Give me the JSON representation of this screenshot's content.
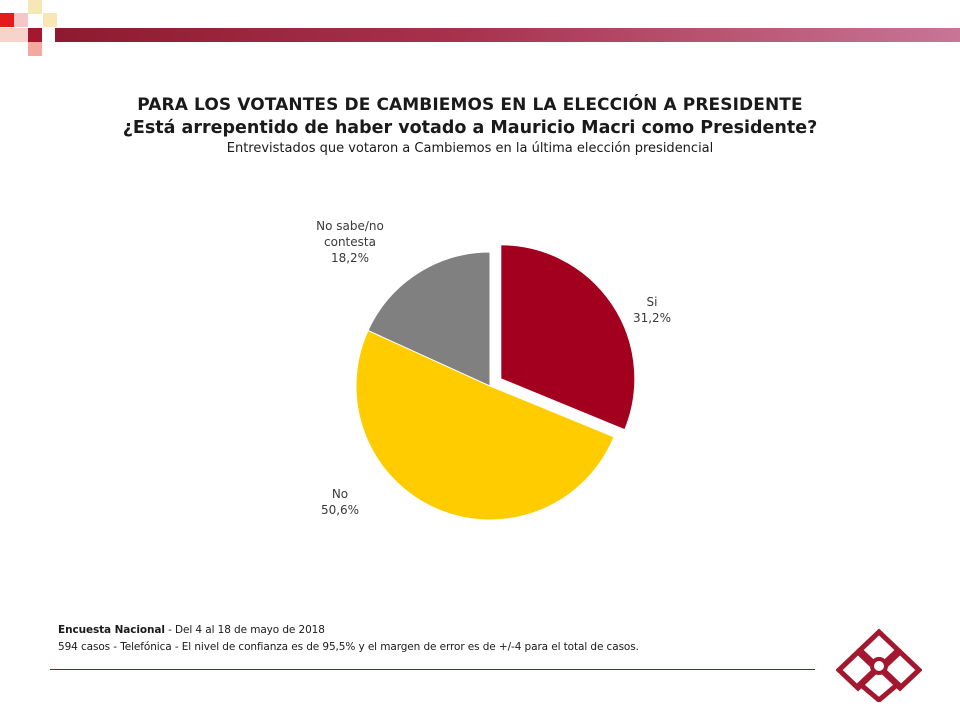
{
  "header": {
    "title": "PARA LOS VOTANTES DE CAMBIEMOS EN LA ELECCIÓN A PRESIDENTE",
    "subtitle": "¿Está arrepentido de haber votado a Mauricio Macri como Presidente?",
    "subsubtitle": "Entrevistados que votaron a Cambiemos en la última elección presidencial"
  },
  "chart_data": {
    "type": "pie",
    "slices": [
      {
        "label": "Si",
        "value": 31.2,
        "value_label": "31,2%",
        "color": "#a3001f",
        "exploded": true
      },
      {
        "label": "No",
        "value": 50.6,
        "value_label": "50,6%",
        "color": "#ffcc00",
        "exploded": false
      },
      {
        "label": "No sabe/no contesta",
        "value": 18.2,
        "value_label": "18,2%",
        "color": "#808080",
        "exploded": false
      }
    ]
  },
  "footer": {
    "survey_name": "Encuesta Nacional",
    "survey_dates": " - Del 4 al 18 de mayo de 2018",
    "cases": "594 casos - Telefónica",
    "confidence_note": " - El nivel de confianza es de 95,5% y el margen de error es de +/-4 para el total de casos."
  },
  "colors": {
    "brand": "#8e1a30",
    "si": "#a3001f",
    "no": "#ffcc00",
    "ns_nc": "#808080"
  }
}
